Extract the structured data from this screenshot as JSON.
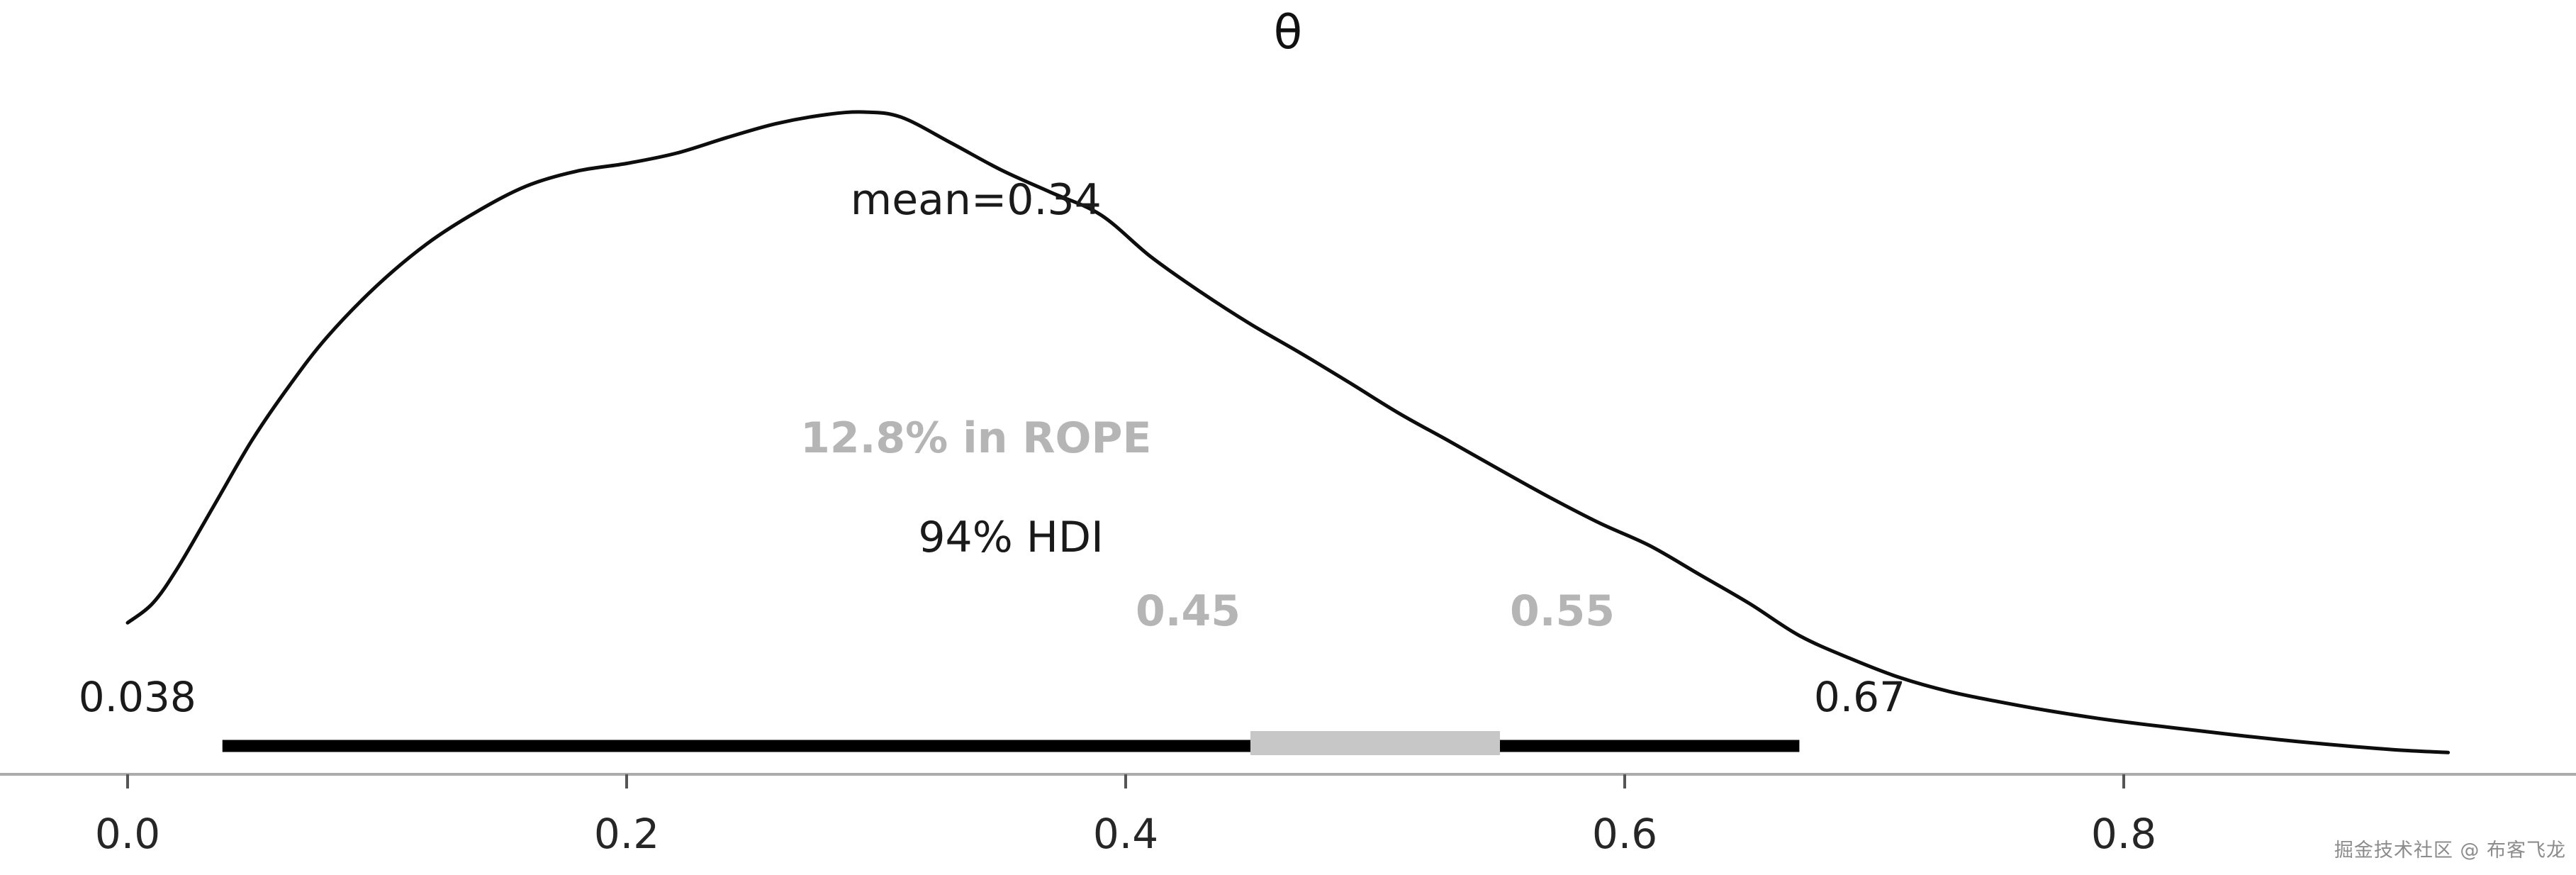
{
  "watermark": "掘金技术社区 @ 布客飞龙",
  "chart_data": {
    "type": "area",
    "title": "θ",
    "variable": "θ",
    "mean": 0.34,
    "mean_label": "mean=0.34",
    "hdi_prob_label": "94% HDI",
    "hdi_low": 0.038,
    "hdi_high": 0.67,
    "hdi_low_label": "0.038",
    "hdi_high_label": "0.67",
    "rope_percent": 12.8,
    "rope_label": "12.8% in ROPE",
    "rope_low": 0.45,
    "rope_high": 0.55,
    "rope_low_label": "0.45",
    "rope_high_label": "0.55",
    "x_ticks": [
      0.0,
      0.2,
      0.4,
      0.6,
      0.8
    ],
    "x_tick_labels": [
      "0.0",
      "0.2",
      "0.4",
      "0.6",
      "0.8"
    ],
    "xlim": [
      -0.055,
      0.975
    ],
    "grid": false,
    "legend": "none",
    "density_unit": "relative (peak = 1.0)",
    "kde": {
      "x": [
        0.0,
        0.01,
        0.02,
        0.035,
        0.05,
        0.065,
        0.08,
        0.1,
        0.12,
        0.14,
        0.16,
        0.18,
        0.2,
        0.22,
        0.24,
        0.26,
        0.28,
        0.295,
        0.31,
        0.33,
        0.35,
        0.37,
        0.39,
        0.41,
        0.43,
        0.45,
        0.47,
        0.49,
        0.51,
        0.53,
        0.55,
        0.57,
        0.59,
        0.61,
        0.63,
        0.65,
        0.67,
        0.69,
        0.71,
        0.73,
        0.75,
        0.77,
        0.79,
        0.81,
        0.83,
        0.85,
        0.87,
        0.89,
        0.91,
        0.93
      ],
      "density": [
        0.205,
        0.235,
        0.29,
        0.39,
        0.49,
        0.575,
        0.65,
        0.73,
        0.795,
        0.845,
        0.885,
        0.908,
        0.92,
        0.936,
        0.96,
        0.982,
        0.996,
        1.0,
        0.992,
        0.952,
        0.91,
        0.875,
        0.84,
        0.775,
        0.72,
        0.67,
        0.625,
        0.578,
        0.53,
        0.487,
        0.443,
        0.4,
        0.36,
        0.325,
        0.28,
        0.235,
        0.185,
        0.15,
        0.12,
        0.098,
        0.082,
        0.068,
        0.056,
        0.046,
        0.037,
        0.028,
        0.02,
        0.013,
        0.007,
        0.003
      ]
    },
    "colors": {
      "curve": "#0d0d0d",
      "hdi_bar": "#000000",
      "rope_bar": "#c7c7c7",
      "gray_text": "#b5b5b5",
      "dark_text": "#1a1a1a",
      "axis": "#ababab",
      "tick_text": "#262626"
    }
  }
}
